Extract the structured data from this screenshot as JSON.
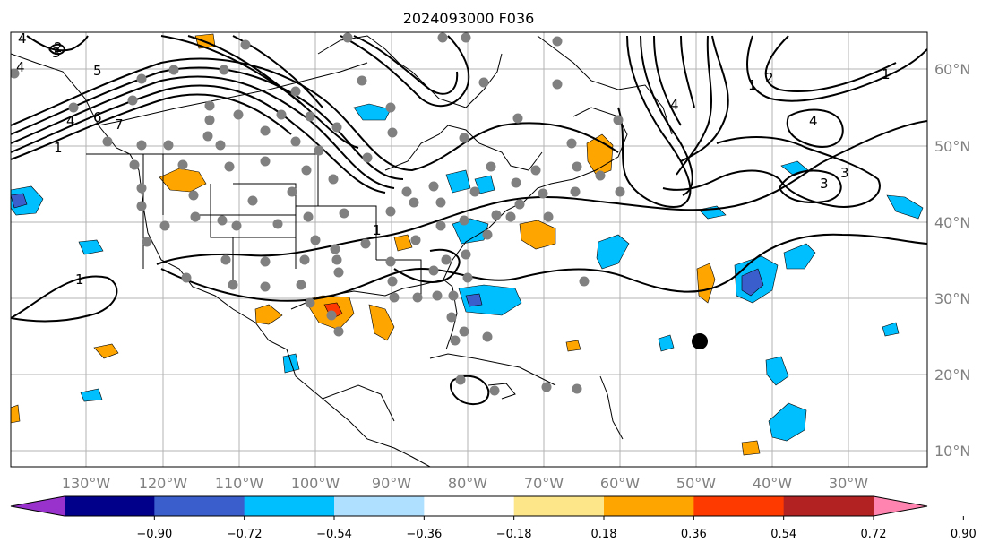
{
  "title": "2024093000 F036",
  "lon_labels": [
    "130°W",
    "120°W",
    "110°W",
    "100°W",
    "90°W",
    "80°W",
    "70°W",
    "60°W",
    "50°W",
    "40°W",
    "30°W"
  ],
  "lat_labels": [
    "60°N",
    "50°N",
    "40°N",
    "30°N",
    "20°N",
    "10°N"
  ],
  "colorbar": {
    "ticks": [
      "−0.90",
      "−0.72",
      "−0.54",
      "−0.36",
      "−0.18",
      "0.18",
      "0.36",
      "0.54",
      "0.72",
      "0.90"
    ],
    "colors": [
      "#9932cc",
      "#00008b",
      "#3a5fcd",
      "#00bfff",
      "#b0e0ff",
      "#ffffff",
      "#fde68a",
      "#ffa500",
      "#ff3a00",
      "#b22222",
      "#ff85b0"
    ],
    "extend": "both"
  },
  "contour_labels": [
    "1",
    "1",
    "1",
    "2",
    "4",
    "3",
    "4",
    "5",
    "4",
    "6",
    "7",
    "1",
    "2",
    "3",
    "4",
    "1",
    "4",
    "3"
  ],
  "palette": {
    "frame": "#000000",
    "grid": "#b3b3b3",
    "station": "#808080",
    "marker": "#000000"
  },
  "markers": {
    "station_dots": "gray-circles",
    "center_marker": "black-circle"
  }
}
